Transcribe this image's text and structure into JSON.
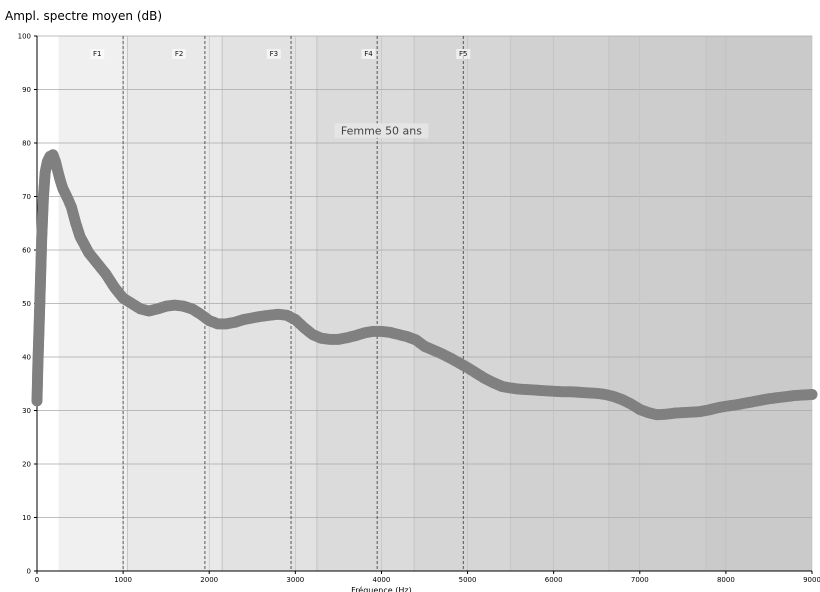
{
  "chart_data": {
    "type": "scatter",
    "title": "Ampl. spectre moyen (dB)",
    "xlabel": "Fréquence (Hz)",
    "ylabel": "",
    "xlim": [
      0,
      9000
    ],
    "ylim": [
      0,
      100
    ],
    "x_ticks": [
      "0",
      "1000",
      "2000",
      "3000",
      "4000",
      "5000",
      "6000",
      "7000",
      "8000",
      "9000"
    ],
    "y_ticks": [
      "0",
      "10",
      "20",
      "30",
      "40",
      "50",
      "60",
      "70",
      "80",
      "90",
      "100"
    ],
    "grid": true,
    "annotation": "Femme  50 ans",
    "formant_lines": [
      1000,
      1950,
      2950,
      3950,
      4950
    ],
    "band_edges": [
      250,
      1050,
      2150,
      3250,
      4380,
      5500,
      6640,
      7770,
      9000
    ],
    "bands": [
      {
        "label": "F1",
        "x": 700,
        "color": "#f0f0f0"
      },
      {
        "label": "F2",
        "x": 1650,
        "color": "#e9e9e9"
      },
      {
        "label": "F3",
        "x": 2750,
        "color": "#e2e2e2"
      },
      {
        "label": "F4",
        "x": 3850,
        "color": "#dbdbdb"
      },
      {
        "label": "F5",
        "x": 4950,
        "color": "#d6d6d6"
      },
      {
        "label": "",
        "x": 6000,
        "color": "#d1d1d1"
      },
      {
        "label": "",
        "x": 7200,
        "color": "#cdcdcd"
      },
      {
        "label": "",
        "x": 8400,
        "color": "#cacaca"
      }
    ],
    "series": [
      {
        "color": "#808080",
        "points": [
          [
            0,
            31.8
          ],
          [
            10,
            38.5
          ],
          [
            25,
            46
          ],
          [
            40,
            54
          ],
          [
            55,
            62.3
          ],
          [
            75,
            70
          ],
          [
            95,
            74.5
          ],
          [
            120,
            76.5
          ],
          [
            150,
            77.5
          ],
          [
            185,
            77.8
          ],
          [
            215,
            76.5
          ],
          [
            245,
            74.5
          ],
          [
            270,
            73
          ],
          [
            300,
            71.5
          ],
          [
            330,
            70.5
          ],
          [
            360,
            69.5
          ],
          [
            400,
            68
          ],
          [
            450,
            65
          ],
          [
            500,
            62.5
          ],
          [
            600,
            59.5
          ],
          [
            700,
            57.5
          ],
          [
            800,
            55.5
          ],
          [
            900,
            53
          ],
          [
            1000,
            51
          ],
          [
            1100,
            50
          ],
          [
            1200,
            49
          ],
          [
            1300,
            48.6
          ],
          [
            1400,
            49
          ],
          [
            1500,
            49.5
          ],
          [
            1600,
            49.7
          ],
          [
            1700,
            49.5
          ],
          [
            1800,
            49
          ],
          [
            1900,
            48
          ],
          [
            2000,
            46.8
          ],
          [
            2100,
            46.2
          ],
          [
            2200,
            46.2
          ],
          [
            2300,
            46.5
          ],
          [
            2400,
            47
          ],
          [
            2500,
            47.3
          ],
          [
            2600,
            47.6
          ],
          [
            2700,
            47.8
          ],
          [
            2800,
            48
          ],
          [
            2900,
            47.8
          ],
          [
            3000,
            47
          ],
          [
            3100,
            45.5
          ],
          [
            3200,
            44.2
          ],
          [
            3300,
            43.5
          ],
          [
            3400,
            43.3
          ],
          [
            3500,
            43.3
          ],
          [
            3600,
            43.6
          ],
          [
            3700,
            44
          ],
          [
            3800,
            44.5
          ],
          [
            3900,
            44.8
          ],
          [
            4000,
            44.8
          ],
          [
            4100,
            44.6
          ],
          [
            4200,
            44.2
          ],
          [
            4300,
            43.8
          ],
          [
            4400,
            43.2
          ],
          [
            4500,
            42
          ],
          [
            4600,
            41.3
          ],
          [
            4700,
            40.6
          ],
          [
            4800,
            39.8
          ],
          [
            4900,
            38.9
          ],
          [
            5000,
            38
          ],
          [
            5100,
            37
          ],
          [
            5200,
            36
          ],
          [
            5300,
            35.2
          ],
          [
            5400,
            34.5
          ],
          [
            5500,
            34.2
          ],
          [
            5600,
            34
          ],
          [
            5700,
            33.9
          ],
          [
            5800,
            33.8
          ],
          [
            5900,
            33.7
          ],
          [
            6000,
            33.6
          ],
          [
            6100,
            33.5
          ],
          [
            6200,
            33.5
          ],
          [
            6300,
            33.4
          ],
          [
            6400,
            33.3
          ],
          [
            6500,
            33.2
          ],
          [
            6600,
            33
          ],
          [
            6700,
            32.6
          ],
          [
            6800,
            32
          ],
          [
            6900,
            31.2
          ],
          [
            7000,
            30.2
          ],
          [
            7100,
            29.6
          ],
          [
            7200,
            29.2
          ],
          [
            7300,
            29.3
          ],
          [
            7400,
            29.5
          ],
          [
            7500,
            29.6
          ],
          [
            7600,
            29.7
          ],
          [
            7700,
            29.8
          ],
          [
            7800,
            30.1
          ],
          [
            7900,
            30.5
          ],
          [
            8000,
            30.8
          ],
          [
            8100,
            31
          ],
          [
            8200,
            31.3
          ],
          [
            8300,
            31.6
          ],
          [
            8400,
            31.9
          ],
          [
            8500,
            32.2
          ],
          [
            8600,
            32.4
          ],
          [
            8700,
            32.6
          ],
          [
            8800,
            32.8
          ],
          [
            8900,
            32.9
          ],
          [
            9000,
            33
          ]
        ]
      }
    ]
  }
}
